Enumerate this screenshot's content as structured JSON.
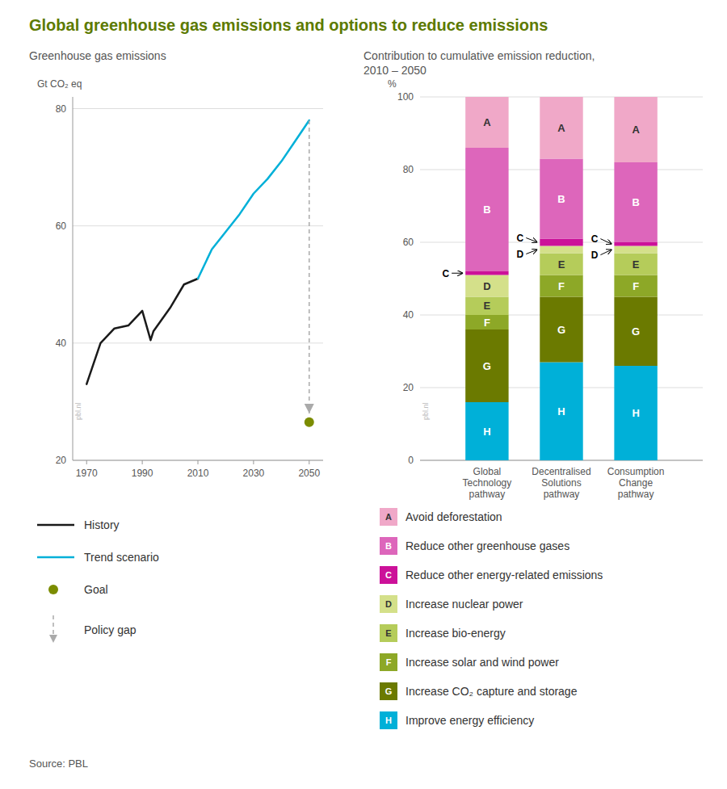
{
  "title": "Global greenhouse gas emissions and options to reduce emissions",
  "source": "Source: PBL",
  "chart_data": [
    {
      "type": "line",
      "title": "Greenhouse gas emissions",
      "ylabel": "Gt CO₂ eq",
      "watermark": "pbl.nl",
      "xlim": [
        1965,
        2055
      ],
      "ylim": [
        20,
        82
      ],
      "xticks": [
        1970,
        1990,
        2010,
        2030,
        2050
      ],
      "yticks": [
        20,
        40,
        60,
        80
      ],
      "grid": true,
      "legend": "bottom",
      "series": [
        {
          "name": "History",
          "color": "#1a1a1a",
          "x": [
            1970,
            1975,
            1980,
            1985,
            1990,
            1993,
            1994,
            1997,
            2000,
            2005,
            2010
          ],
          "values": [
            33,
            40,
            42.5,
            43,
            45.5,
            40.5,
            42,
            44,
            46,
            50,
            51
          ]
        },
        {
          "name": "Trend scenario",
          "color": "#00b0d8",
          "x": [
            2010,
            2015,
            2020,
            2025,
            2030,
            2035,
            2040,
            2045,
            2050
          ],
          "values": [
            51,
            56,
            59,
            62,
            65.5,
            68,
            71,
            74.5,
            78
          ]
        },
        {
          "name": "Goal",
          "type": "scatter",
          "marker": "circle",
          "color": "#7b8c00",
          "x": [
            2050
          ],
          "values": [
            26.5
          ]
        },
        {
          "name": "Policy gap",
          "type": "arrow",
          "line_style": "dashed",
          "color": "#aaaaaa",
          "x": [
            2050,
            2050
          ],
          "values": [
            78,
            28
          ]
        }
      ]
    },
    {
      "type": "bar",
      "stacked": true,
      "title": "Contribution to cumulative emission reduction,\n2010 – 2050",
      "ylabel": "%",
      "watermark": "pbl.nl",
      "categories": [
        "Global\nTechnology\npathway",
        "Decentralised\nSolutions\npathway",
        "Consumption\nChange\npathway"
      ],
      "ylim": [
        0,
        100
      ],
      "yticks": [
        0,
        20,
        40,
        60,
        80,
        100
      ],
      "grid": true,
      "legend": "bottom",
      "series": [
        {
          "name": "Improve energy efficiency",
          "letter": "H",
          "color": "#00b0d8",
          "values": [
            16,
            27,
            26
          ]
        },
        {
          "name": "Increase CO₂ capture and storage",
          "letter": "G",
          "color": "#6b7a00",
          "values": [
            20,
            18,
            19
          ]
        },
        {
          "name": "Increase solar and wind power",
          "letter": "F",
          "color": "#8da827",
          "values": [
            4,
            6,
            6
          ]
        },
        {
          "name": "Increase bio-energy",
          "letter": "E",
          "color": "#b5cc5a",
          "values": [
            5,
            6,
            6
          ]
        },
        {
          "name": "Increase nuclear power",
          "letter": "D",
          "color": "#d4e08a",
          "values": [
            6,
            2,
            2
          ]
        },
        {
          "name": "Reduce other energy-related emissions",
          "letter": "C",
          "color": "#cc1199",
          "values": [
            1,
            2,
            1
          ]
        },
        {
          "name": "Reduce other greenhouse gases",
          "letter": "B",
          "color": "#dd66bb",
          "values": [
            34,
            22,
            22
          ]
        },
        {
          "name": "Avoid deforestation",
          "letter": "A",
          "color": "#f0a8c8",
          "values": [
            14,
            17,
            18
          ]
        }
      ]
    }
  ]
}
